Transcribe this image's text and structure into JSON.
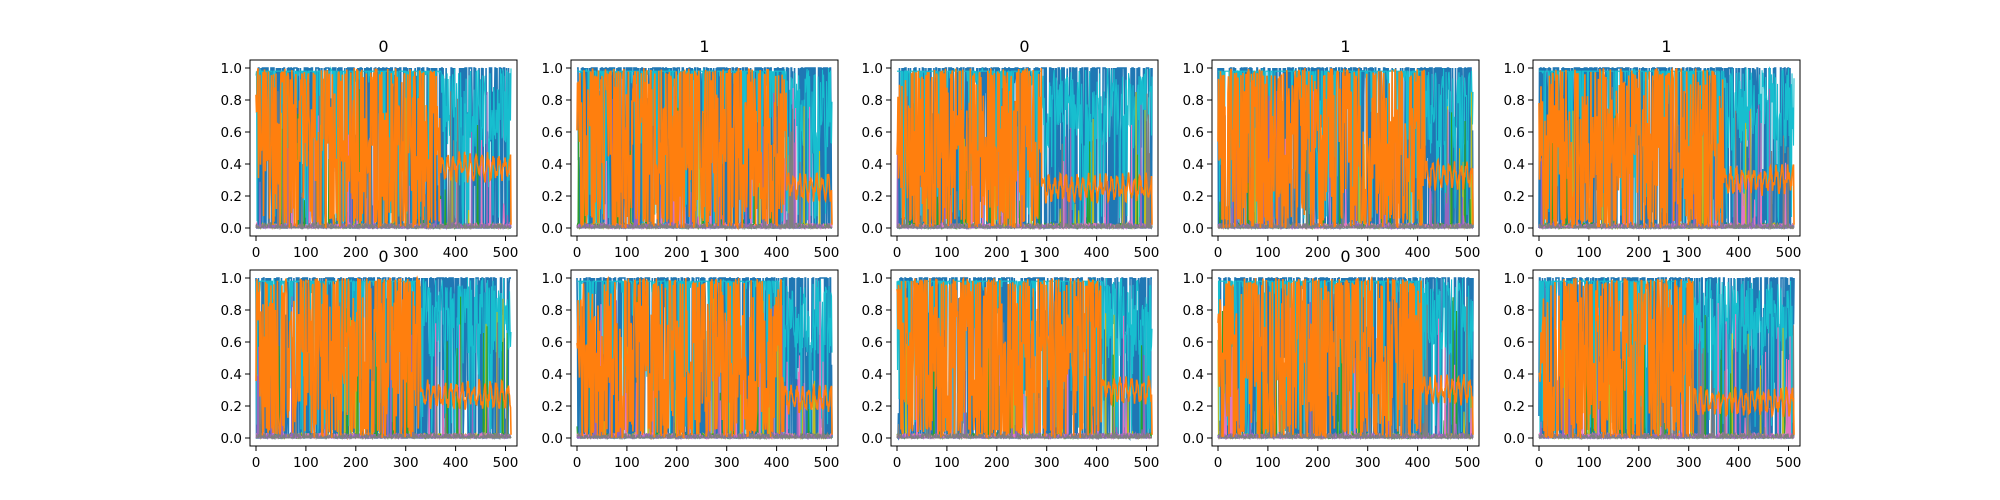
{
  "chart_data": {
    "type": "line",
    "layout": {
      "rows": 2,
      "cols": 5
    },
    "xlim": [
      -12,
      523
    ],
    "ylim": [
      -0.05,
      1.05
    ],
    "x_ticks": [
      0,
      100,
      200,
      300,
      400,
      500
    ],
    "y_ticks": [
      0.0,
      0.2,
      0.4,
      0.6,
      0.8,
      1.0
    ],
    "x_tick_labels": [
      "0",
      "100",
      "200",
      "300",
      "400",
      "500"
    ],
    "y_tick_labels": [
      "0.0",
      "0.2",
      "0.4",
      "0.6",
      "0.8",
      "1.0"
    ],
    "n_points": 512,
    "grid": false,
    "legend": "none",
    "series_colors": {
      "background": "#1f77b4",
      "foreground": "#ff7f0e",
      "minor": [
        "#17becf",
        "#bcbd22",
        "#2ca02c",
        "#e377c2",
        "#9467bd",
        "#7f7f7f"
      ]
    },
    "subplots": [
      {
        "title": "0",
        "transition_x": 370,
        "settled_level": 0.38
      },
      {
        "title": "1",
        "transition_x": 420,
        "settled_level": 0.26
      },
      {
        "title": "0",
        "transition_x": 290,
        "settled_level": 0.25
      },
      {
        "title": "1",
        "transition_x": 415,
        "settled_level": 0.33
      },
      {
        "title": "1",
        "transition_x": 370,
        "settled_level": 0.3
      },
      {
        "title": "0",
        "transition_x": 330,
        "settled_level": 0.27
      },
      {
        "title": "1",
        "transition_x": 415,
        "settled_level": 0.24
      },
      {
        "title": "1",
        "transition_x": 410,
        "settled_level": 0.3
      },
      {
        "title": "0",
        "transition_x": 410,
        "settled_level": 0.3
      },
      {
        "title": "1",
        "transition_x": 310,
        "settled_level": 0.23
      }
    ]
  }
}
